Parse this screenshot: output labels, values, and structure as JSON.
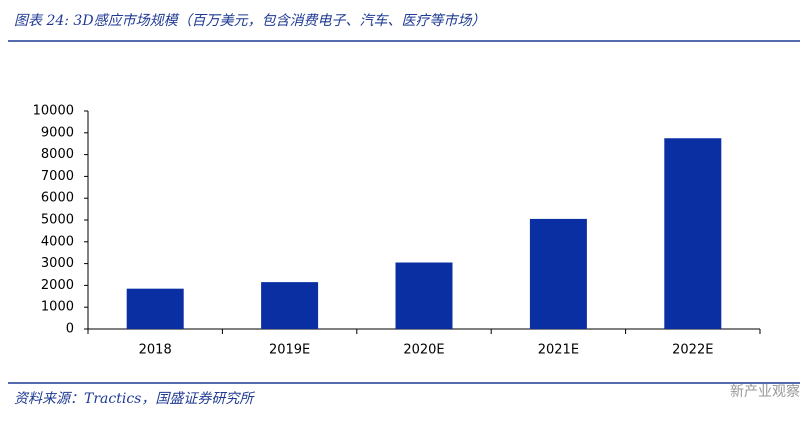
{
  "chart_data": {
    "type": "bar",
    "title": "图表 24: 3D感应市场规模（百万美元，包含消费电子、汽车、医疗等市场）",
    "source": "资料来源：Tractics，国盛证券研究所",
    "watermark": "新产业观察",
    "categories": [
      "2018",
      "2019E",
      "2020E",
      "2021E",
      "2022E"
    ],
    "values": [
      1850,
      2150,
      3050,
      5050,
      8750
    ],
    "color": "#0a2fa3",
    "ylim": [
      0,
      10000
    ],
    "yticks": [
      0,
      1000,
      2000,
      3000,
      4000,
      5000,
      6000,
      7000,
      8000,
      9000,
      10000
    ],
    "grid": false
  }
}
